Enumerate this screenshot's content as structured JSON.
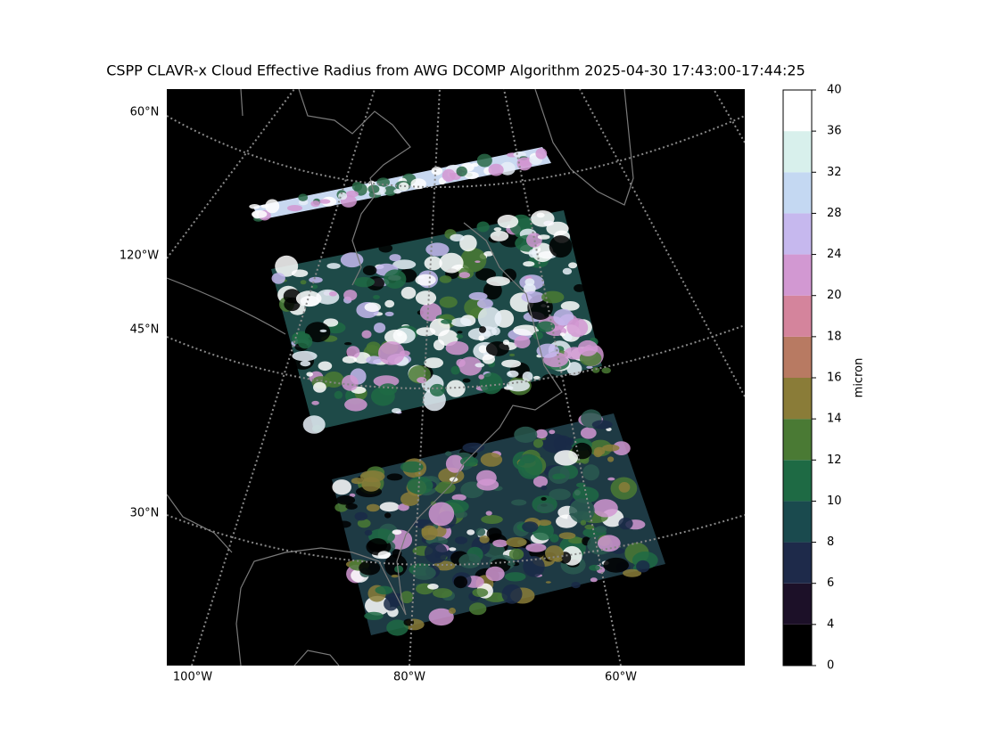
{
  "title": "CSPP CLAVR-x Cloud Effective Radius from AWG DCOMP Algorithm 2025-04-30 17:43:00-17:44:25",
  "map": {
    "lat_labels": [
      "60°N",
      "45°N",
      "30°N"
    ],
    "lon_labels_left": [
      "120°W"
    ],
    "lon_labels_bottom": [
      "100°W",
      "80°W",
      "60°W"
    ]
  },
  "colorbar": {
    "label": "micron",
    "ticks": [
      0,
      4,
      6,
      8,
      10,
      12,
      14,
      16,
      18,
      20,
      24,
      28,
      32,
      36,
      40
    ],
    "colors": [
      "#000000",
      "#1c1028",
      "#1e2a4a",
      "#1a4a4e",
      "#1e6a44",
      "#4a7a34",
      "#8a7c38",
      "#b87a62",
      "#d4849c",
      "#d298d2",
      "#c6b8ee",
      "#c4d8f2",
      "#d8f0ec",
      "#ffffff"
    ]
  }
}
